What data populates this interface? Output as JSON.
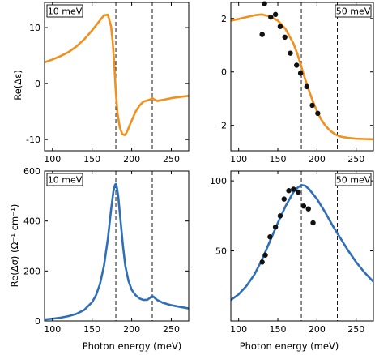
{
  "figure": {
    "xlabel": "Photon energy (meV)",
    "ylabel_top": "Re(Δε)",
    "ylabel_bottom": "Re(Δσ) (Ω⁻¹ cm⁻¹)",
    "colors": {
      "orange": "#f0901e",
      "blue": "#2f6fb8",
      "points": "#111111"
    }
  },
  "chart_data": [
    {
      "id": "eps-10",
      "type": "line",
      "energy_label": "10 meV",
      "xlim": [
        90,
        272
      ],
      "ylim": [
        -12,
        14.5
      ],
      "xticks": [
        100,
        150,
        200,
        250
      ],
      "yticks": [
        -10,
        0,
        10
      ],
      "yticklabels": [
        "-10",
        "0",
        "10"
      ],
      "vlines": [
        180,
        226
      ],
      "color": "orange",
      "x": [
        90,
        100,
        110,
        120,
        130,
        140,
        150,
        160,
        165,
        170,
        174,
        176,
        178,
        180,
        182,
        185,
        188,
        191,
        193,
        195,
        200,
        205,
        210,
        215,
        220,
        224,
        226,
        228,
        232,
        240,
        250,
        260,
        272
      ],
      "y": [
        3.8,
        4.3,
        4.9,
        5.6,
        6.6,
        7.9,
        9.5,
        11.3,
        12.2,
        12.3,
        10.2,
        7.5,
        3.5,
        -1.5,
        -5.2,
        -7.8,
        -9.0,
        -9.2,
        -8.9,
        -8.3,
        -6.6,
        -5.0,
        -3.9,
        -3.2,
        -3.0,
        -2.8,
        -2.6,
        -2.8,
        -3.1,
        -2.9,
        -2.6,
        -2.4,
        -2.2
      ],
      "points": []
    },
    {
      "id": "eps-50",
      "type": "line",
      "energy_label": "50 meV",
      "xlim": [
        90,
        272
      ],
      "ylim": [
        -2.95,
        2.6
      ],
      "xticks": [
        100,
        150,
        200,
        250
      ],
      "yticks": [
        -2,
        0,
        2
      ],
      "yticklabels": [
        "-2",
        "0",
        "2"
      ],
      "vlines": [
        180,
        226
      ],
      "color": "orange",
      "x": [
        90,
        100,
        110,
        120,
        130,
        140,
        150,
        160,
        170,
        175,
        180,
        185,
        190,
        195,
        200,
        205,
        210,
        215,
        220,
        225,
        230,
        240,
        250,
        260,
        272
      ],
      "y": [
        1.92,
        1.98,
        2.05,
        2.12,
        2.15,
        2.07,
        1.92,
        1.6,
        1.06,
        0.67,
        0.2,
        -0.28,
        -0.72,
        -1.12,
        -1.47,
        -1.76,
        -1.98,
        -2.15,
        -2.27,
        -2.36,
        -2.42,
        -2.47,
        -2.5,
        -2.51,
        -2.52
      ],
      "points": [
        [
          130,
          1.4
        ],
        [
          133,
          2.55
        ],
        [
          141,
          2.05
        ],
        [
          147,
          2.15
        ],
        [
          153,
          1.7
        ],
        [
          159,
          1.3
        ],
        [
          166,
          0.7
        ],
        [
          174,
          0.25
        ],
        [
          179,
          -0.05
        ],
        [
          187,
          -0.55
        ],
        [
          194,
          -1.25
        ],
        [
          201,
          -1.55
        ]
      ]
    },
    {
      "id": "sigma-10",
      "type": "line",
      "energy_label": "10 meV",
      "xlim": [
        90,
        272
      ],
      "ylim": [
        0,
        600
      ],
      "xticks": [
        100,
        150,
        200,
        250
      ],
      "yticks": [
        0,
        200,
        400,
        600
      ],
      "yticklabels": [
        "0",
        "200",
        "400",
        "600"
      ],
      "vlines": [
        180,
        226
      ],
      "color": "blue",
      "x": [
        90,
        100,
        110,
        120,
        130,
        140,
        150,
        155,
        160,
        165,
        170,
        174,
        177,
        179,
        180,
        181,
        183,
        186,
        189,
        192,
        196,
        200,
        205,
        210,
        215,
        220,
        224,
        226,
        228,
        232,
        240,
        250,
        260,
        272
      ],
      "y": [
        6,
        9,
        13,
        19,
        28,
        44,
        75,
        103,
        148,
        220,
        330,
        445,
        520,
        545,
        548,
        540,
        500,
        400,
        300,
        220,
        160,
        125,
        103,
        90,
        84,
        85,
        95,
        100,
        96,
        84,
        72,
        63,
        57,
        50
      ],
      "points": []
    },
    {
      "id": "sigma-50",
      "type": "line",
      "energy_label": "50 meV",
      "xlim": [
        90,
        272
      ],
      "ylim": [
        0,
        107
      ],
      "xticks": [
        100,
        150,
        200,
        250
      ],
      "yticks": [
        50,
        100
      ],
      "yticklabels": [
        "50",
        "100"
      ],
      "vlines": [
        180,
        226
      ],
      "color": "blue",
      "x": [
        90,
        100,
        110,
        120,
        130,
        140,
        150,
        160,
        170,
        175,
        180,
        185,
        190,
        200,
        210,
        220,
        230,
        240,
        250,
        260,
        272
      ],
      "y": [
        15,
        19,
        25,
        33,
        44,
        57,
        70,
        82,
        92,
        95,
        97,
        96.5,
        94,
        87,
        78,
        68,
        59,
        50,
        42,
        35,
        28
      ],
      "points": [
        [
          130,
          42
        ],
        [
          134,
          47
        ],
        [
          140,
          60
        ],
        [
          147,
          67
        ],
        [
          153,
          75
        ],
        [
          158,
          87
        ],
        [
          164,
          93
        ],
        [
          170,
          94
        ],
        [
          176,
          92
        ],
        [
          183,
          82
        ],
        [
          189,
          80
        ],
        [
          195,
          70
        ]
      ]
    }
  ]
}
